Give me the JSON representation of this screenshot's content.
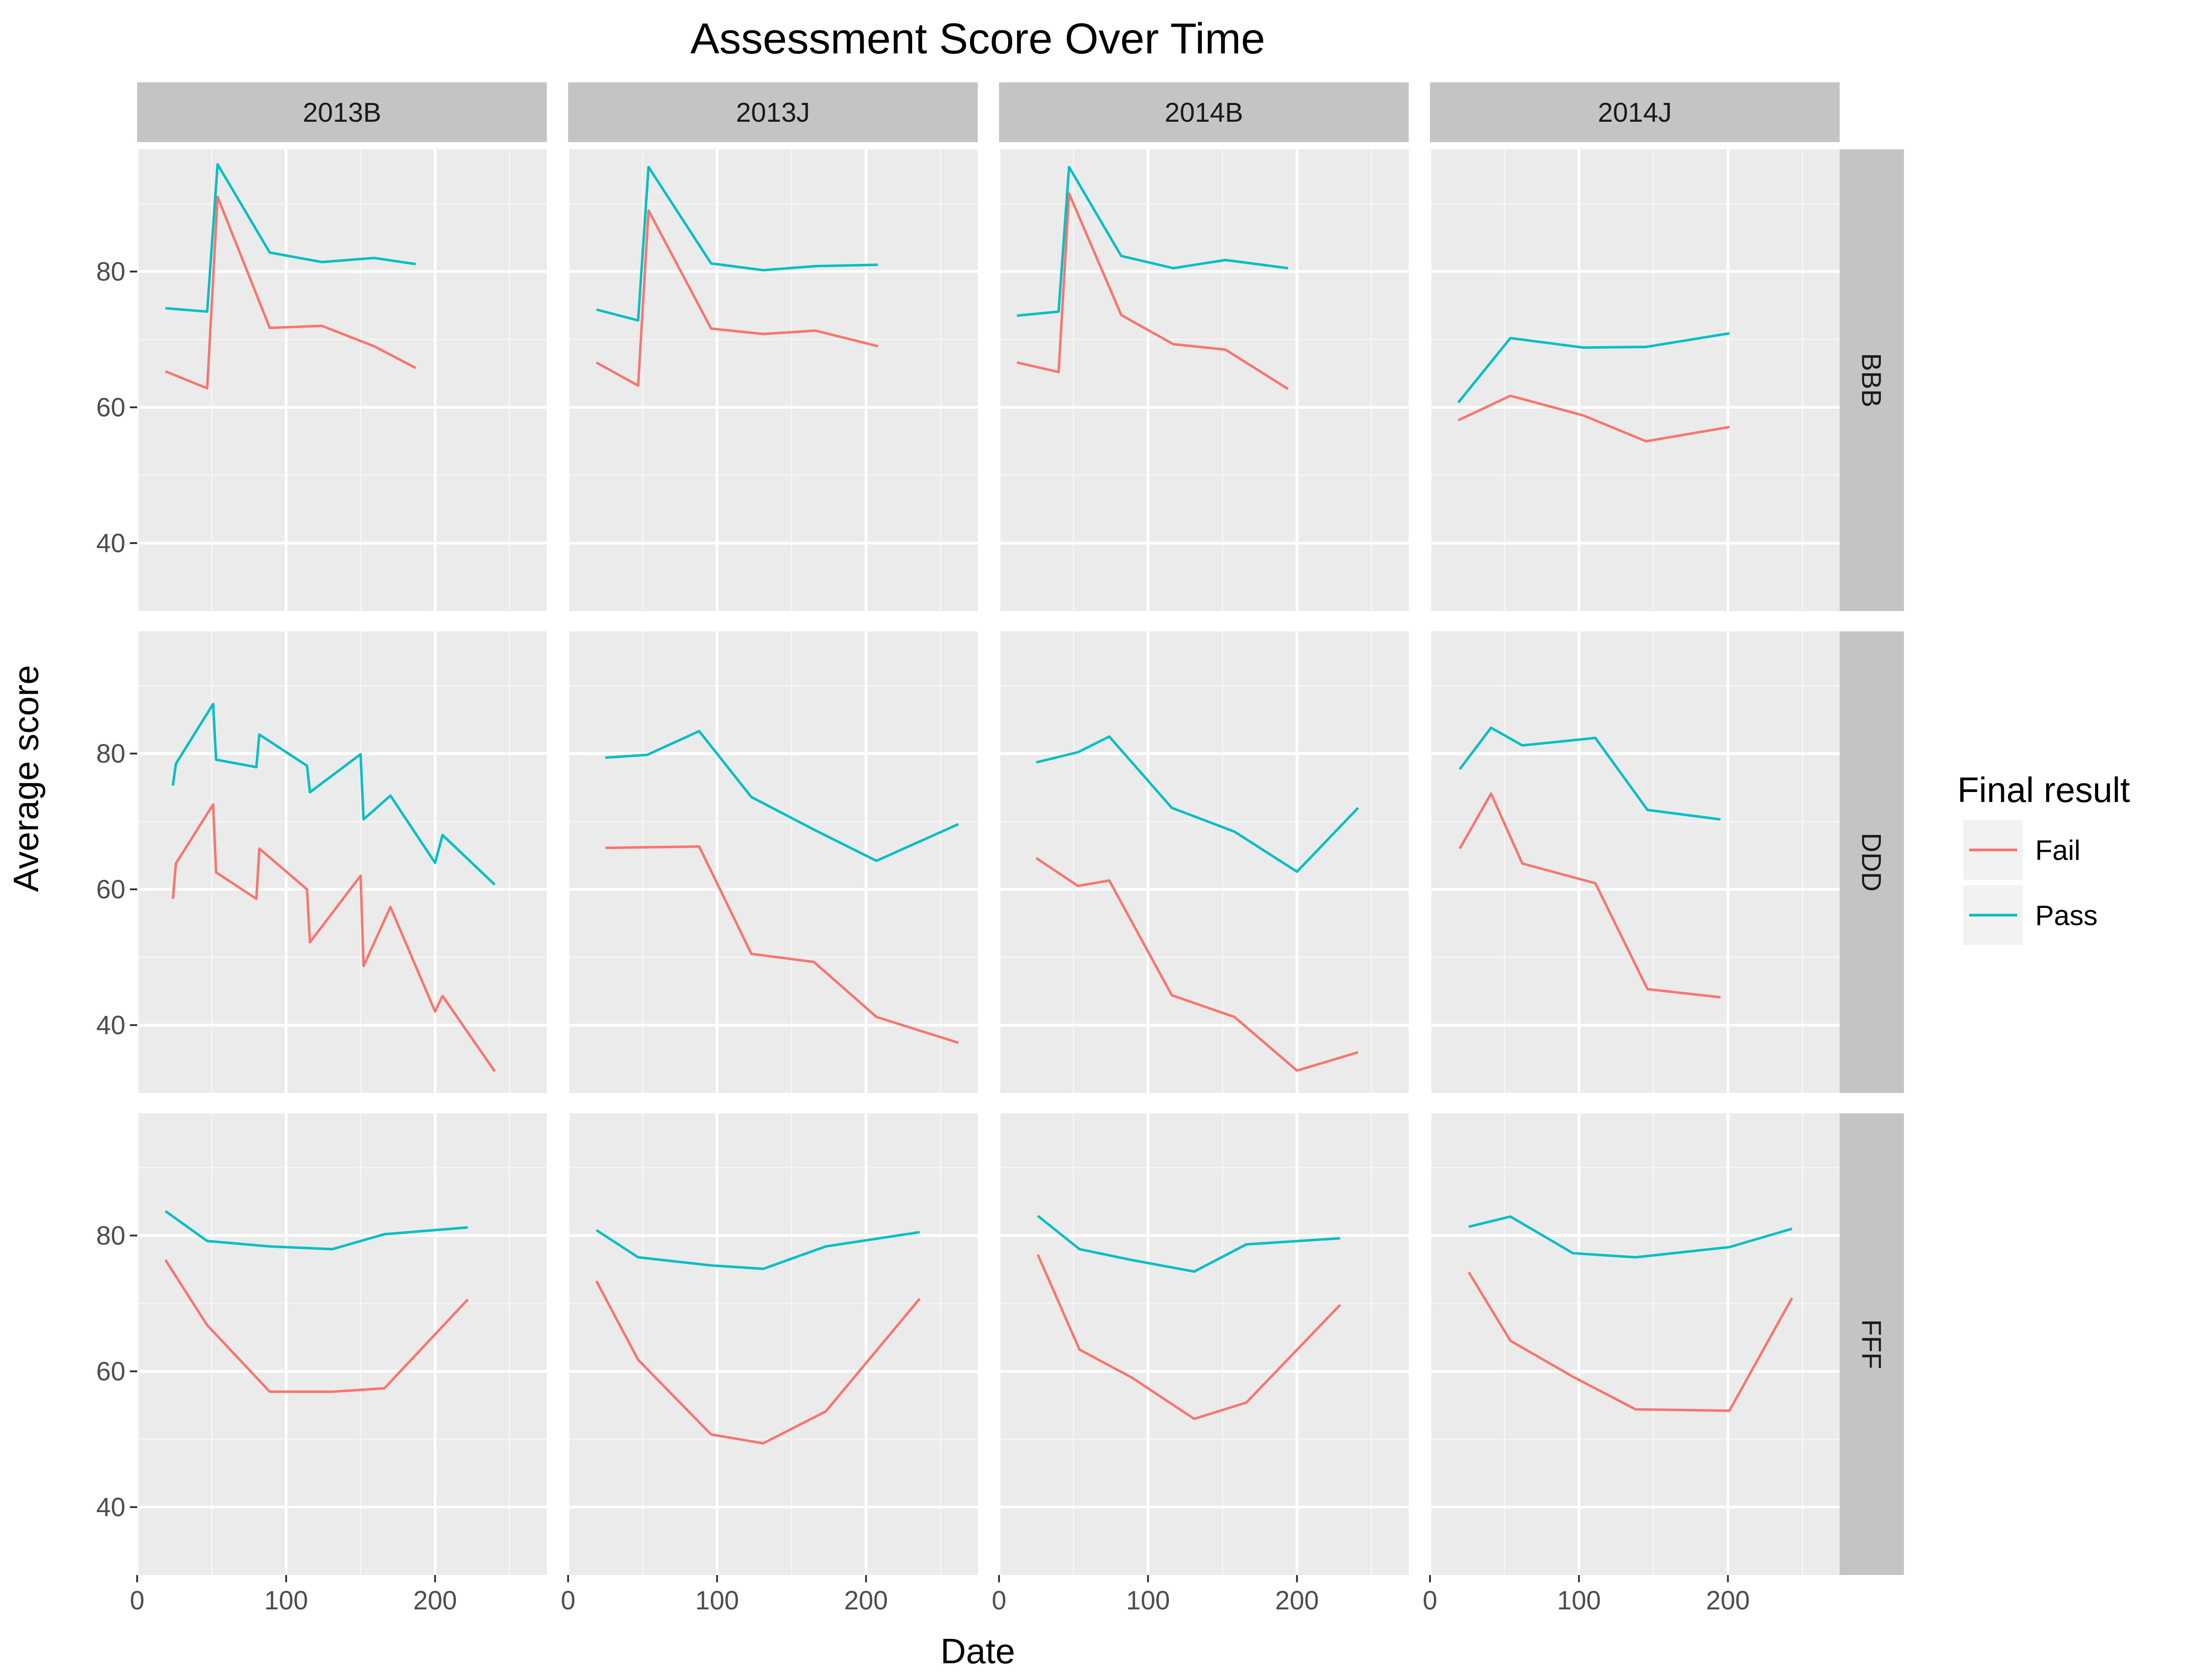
{
  "chart_data": {
    "type": "line",
    "title": "Assessment Score Over Time",
    "xlabel": "Date",
    "ylabel": "Average score",
    "xlim": [
      0,
      275
    ],
    "ylim": [
      30,
      98
    ],
    "x_ticks": [
      0,
      100,
      200
    ],
    "y_ticks": [
      40,
      60,
      80
    ],
    "grid": true,
    "legend": {
      "title": "Final result",
      "position": "right",
      "entries": [
        {
          "name": "Fail",
          "color": "#F8766D"
        },
        {
          "name": "Pass",
          "color": "#00BFC4"
        }
      ]
    },
    "col_facets": [
      "2013B",
      "2013J",
      "2014B",
      "2014J"
    ],
    "row_facets": [
      "BBB",
      "DDD",
      "FFF"
    ],
    "panels": [
      {
        "row": "BBB",
        "col": "2013B",
        "series": [
          {
            "name": "Fail",
            "points": [
              [
                19,
                65.3
              ],
              [
                47,
                62.8
              ],
              [
                54,
                91.0
              ],
              [
                89,
                71.7
              ],
              [
                124,
                72.0
              ],
              [
                159,
                69.0
              ],
              [
                187,
                65.8
              ]
            ]
          },
          {
            "name": "Pass",
            "points": [
              [
                19,
                74.6
              ],
              [
                47,
                74.1
              ],
              [
                54,
                95.8
              ],
              [
                89,
                82.8
              ],
              [
                124,
                81.4
              ],
              [
                159,
                82.0
              ],
              [
                187,
                81.1
              ]
            ]
          }
        ]
      },
      {
        "row": "BBB",
        "col": "2013J",
        "series": [
          {
            "name": "Fail",
            "points": [
              [
                19,
                66.6
              ],
              [
                47,
                63.2
              ],
              [
                54,
                89.0
              ],
              [
                96,
                71.6
              ],
              [
                131,
                70.8
              ],
              [
                166,
                71.3
              ],
              [
                208,
                69.0
              ]
            ]
          },
          {
            "name": "Pass",
            "points": [
              [
                19,
                74.4
              ],
              [
                47,
                72.8
              ],
              [
                54,
                95.4
              ],
              [
                96,
                81.2
              ],
              [
                131,
                80.2
              ],
              [
                166,
                80.8
              ],
              [
                208,
                81.0
              ]
            ]
          }
        ]
      },
      {
        "row": "BBB",
        "col": "2014B",
        "series": [
          {
            "name": "Fail",
            "points": [
              [
                12,
                66.6
              ],
              [
                40,
                65.2
              ],
              [
                47,
                91.5
              ],
              [
                82,
                73.6
              ],
              [
                117,
                69.3
              ],
              [
                152,
                68.5
              ],
              [
                194,
                62.7
              ]
            ]
          },
          {
            "name": "Pass",
            "points": [
              [
                12,
                73.5
              ],
              [
                40,
                74.1
              ],
              [
                47,
                95.4
              ],
              [
                82,
                82.3
              ],
              [
                117,
                80.5
              ],
              [
                152,
                81.7
              ],
              [
                194,
                80.5
              ]
            ]
          }
        ]
      },
      {
        "row": "BBB",
        "col": "2014J",
        "series": [
          {
            "name": "Fail",
            "points": [
              [
                19,
                58.1
              ],
              [
                54,
                61.7
              ],
              [
                103,
                58.8
              ],
              [
                145,
                55.0
              ],
              [
                201,
                57.1
              ]
            ]
          },
          {
            "name": "Pass",
            "points": [
              [
                19,
                60.7
              ],
              [
                54,
                70.2
              ],
              [
                103,
                68.8
              ],
              [
                145,
                68.9
              ],
              [
                201,
                70.9
              ]
            ]
          }
        ]
      },
      {
        "row": "DDD",
        "col": "2013B",
        "series": [
          {
            "name": "Fail",
            "points": [
              [
                24,
                58.6
              ],
              [
                26,
                63.8
              ],
              [
                51,
                72.5
              ],
              [
                53,
                62.5
              ],
              [
                80,
                58.6
              ],
              [
                82,
                66.0
              ],
              [
                114,
                60.0
              ],
              [
                116,
                52.2
              ],
              [
                150,
                62.0
              ],
              [
                152,
                48.7
              ],
              [
                170,
                57.4
              ],
              [
                200,
                42.0
              ],
              [
                205,
                44.3
              ],
              [
                240,
                33.2
              ]
            ]
          },
          {
            "name": "Pass",
            "points": [
              [
                24,
                75.3
              ],
              [
                26,
                78.5
              ],
              [
                51,
                87.3
              ],
              [
                53,
                79.1
              ],
              [
                80,
                78.0
              ],
              [
                82,
                82.8
              ],
              [
                114,
                78.2
              ],
              [
                116,
                74.3
              ],
              [
                150,
                79.9
              ],
              [
                152,
                70.3
              ],
              [
                170,
                73.8
              ],
              [
                200,
                63.9
              ],
              [
                205,
                68.0
              ],
              [
                240,
                60.7
              ]
            ]
          }
        ]
      },
      {
        "row": "DDD",
        "col": "2013J",
        "series": [
          {
            "name": "Fail",
            "points": [
              [
                25,
                66.1
              ],
              [
                53,
                66.2
              ],
              [
                88,
                66.3
              ],
              [
                123,
                50.5
              ],
              [
                165,
                49.3
              ],
              [
                207,
                41.2
              ],
              [
                262,
                37.4
              ]
            ]
          },
          {
            "name": "Pass",
            "points": [
              [
                25,
                79.4
              ],
              [
                53,
                79.8
              ],
              [
                88,
                83.3
              ],
              [
                123,
                73.6
              ],
              [
                165,
                68.8
              ],
              [
                207,
                64.2
              ],
              [
                262,
                69.6
              ]
            ]
          }
        ]
      },
      {
        "row": "DDD",
        "col": "2014B",
        "series": [
          {
            "name": "Fail",
            "points": [
              [
                25,
                64.6
              ],
              [
                53,
                60.5
              ],
              [
                74,
                61.3
              ],
              [
                116,
                44.4
              ],
              [
                158,
                41.2
              ],
              [
                200,
                33.3
              ],
              [
                241,
                36.0
              ]
            ]
          },
          {
            "name": "Pass",
            "points": [
              [
                25,
                78.7
              ],
              [
                53,
                80.2
              ],
              [
                74,
                82.5
              ],
              [
                116,
                72.0
              ],
              [
                158,
                68.5
              ],
              [
                200,
                62.6
              ],
              [
                241,
                72.0
              ]
            ]
          }
        ]
      },
      {
        "row": "DDD",
        "col": "2014J",
        "series": [
          {
            "name": "Fail",
            "points": [
              [
                20,
                66.0
              ],
              [
                41,
                74.1
              ],
              [
                62,
                63.8
              ],
              [
                111,
                60.9
              ],
              [
                146,
                45.3
              ],
              [
                195,
                44.1
              ]
            ]
          },
          {
            "name": "Pass",
            "points": [
              [
                20,
                77.7
              ],
              [
                41,
                83.8
              ],
              [
                62,
                81.2
              ],
              [
                111,
                82.3
              ],
              [
                146,
                71.7
              ],
              [
                195,
                70.3
              ]
            ]
          }
        ]
      },
      {
        "row": "FFF",
        "col": "2013B",
        "series": [
          {
            "name": "Fail",
            "points": [
              [
                19,
                76.4
              ],
              [
                47,
                66.8
              ],
              [
                89,
                57.0
              ],
              [
                131,
                57.0
              ],
              [
                166,
                57.5
              ],
              [
                222,
                70.6
              ]
            ]
          },
          {
            "name": "Pass",
            "points": [
              [
                19,
                83.6
              ],
              [
                47,
                79.2
              ],
              [
                89,
                78.4
              ],
              [
                131,
                78.0
              ],
              [
                166,
                80.2
              ],
              [
                222,
                81.2
              ]
            ]
          }
        ]
      },
      {
        "row": "FFF",
        "col": "2013J",
        "series": [
          {
            "name": "Fail",
            "points": [
              [
                19,
                73.3
              ],
              [
                47,
                61.7
              ],
              [
                96,
                50.7
              ],
              [
                131,
                49.4
              ],
              [
                173,
                54.1
              ],
              [
                236,
                70.7
              ]
            ]
          },
          {
            "name": "Pass",
            "points": [
              [
                19,
                80.8
              ],
              [
                47,
                76.8
              ],
              [
                96,
                75.6
              ],
              [
                131,
                75.1
              ],
              [
                173,
                78.4
              ],
              [
                236,
                80.5
              ]
            ]
          }
        ]
      },
      {
        "row": "FFF",
        "col": "2014B",
        "series": [
          {
            "name": "Fail",
            "points": [
              [
                26,
                77.2
              ],
              [
                54,
                63.2
              ],
              [
                89,
                59.1
              ],
              [
                131,
                53.0
              ],
              [
                166,
                55.4
              ],
              [
                229,
                69.8
              ]
            ]
          },
          {
            "name": "Pass",
            "points": [
              [
                26,
                82.9
              ],
              [
                54,
                78.0
              ],
              [
                89,
                76.4
              ],
              [
                131,
                74.7
              ],
              [
                166,
                78.7
              ],
              [
                229,
                79.6
              ]
            ]
          }
        ]
      },
      {
        "row": "FFF",
        "col": "2014J",
        "series": [
          {
            "name": "Fail",
            "points": [
              [
                26,
                74.6
              ],
              [
                54,
                64.5
              ],
              [
                96,
                59.2
              ],
              [
                138,
                54.4
              ],
              [
                201,
                54.2
              ],
              [
                243,
                70.8
              ]
            ]
          },
          {
            "name": "Pass",
            "points": [
              [
                26,
                81.3
              ],
              [
                54,
                82.8
              ],
              [
                96,
                77.4
              ],
              [
                138,
                76.8
              ],
              [
                201,
                78.3
              ],
              [
                243,
                81.0
              ]
            ]
          }
        ]
      }
    ]
  }
}
